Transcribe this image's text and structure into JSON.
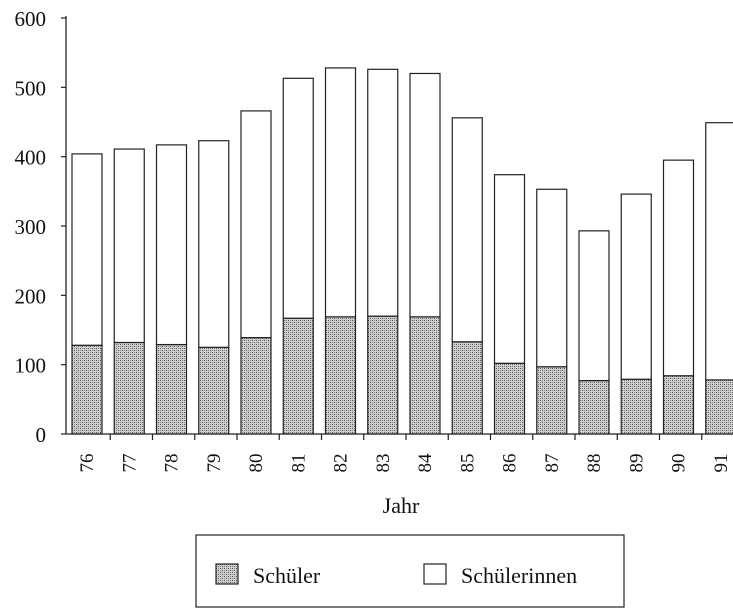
{
  "chart_data": {
    "type": "bar",
    "stacked": true,
    "title": "",
    "xlabel": "Jahr",
    "ylabel": "",
    "ylim": [
      0,
      600
    ],
    "yticks": [
      0,
      100,
      200,
      300,
      400,
      500,
      600
    ],
    "grid": false,
    "legend_position": "bottom-center",
    "categories": [
      "76",
      "77",
      "78",
      "79",
      "80",
      "81",
      "82",
      "83",
      "84",
      "85",
      "86",
      "87",
      "88",
      "89",
      "90",
      "91"
    ],
    "series": [
      {
        "name": "Schüler",
        "pattern": "stippled",
        "color": "#a9a9a9",
        "values": [
          128,
          132,
          129,
          125,
          139,
          167,
          169,
          170,
          169,
          133,
          102,
          97,
          77,
          79,
          84,
          78
        ]
      },
      {
        "name": "Schülerinnen",
        "pattern": "none",
        "color": "#ffffff",
        "values": [
          276,
          279,
          288,
          298,
          327,
          346,
          359,
          356,
          351,
          323,
          272,
          256,
          216,
          267,
          311,
          371
        ]
      }
    ]
  }
}
